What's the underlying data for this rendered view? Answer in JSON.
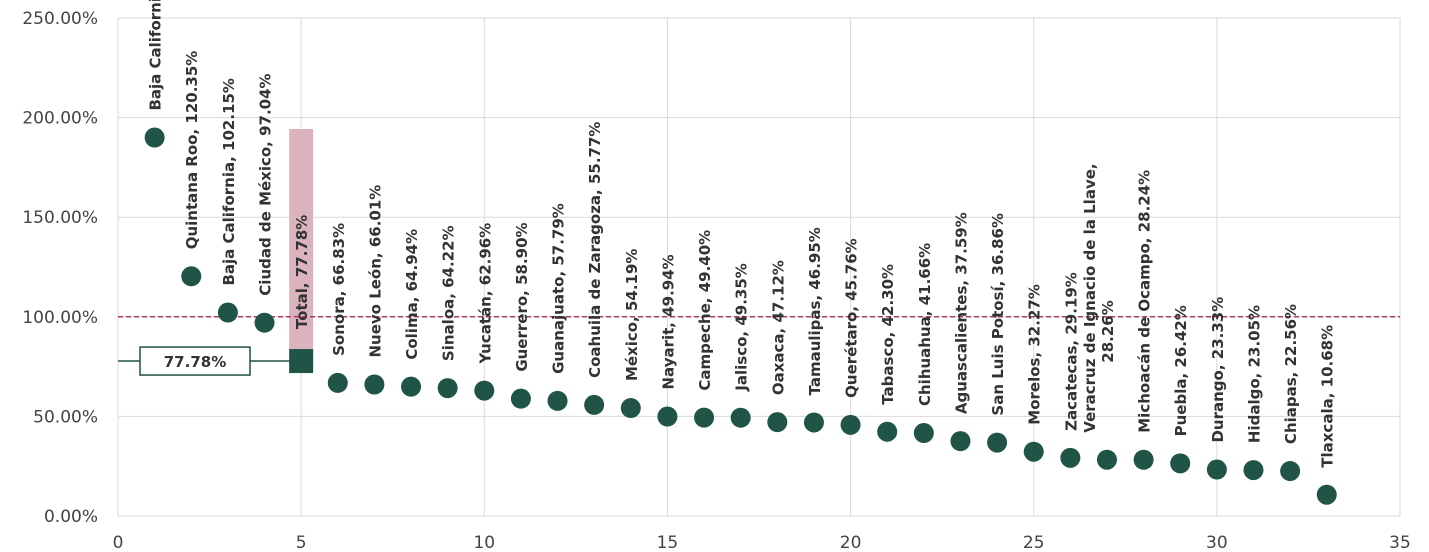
{
  "chart_data": {
    "type": "scatter",
    "xlim": [
      0,
      35
    ],
    "ylim": [
      0,
      250
    ],
    "x_ticks": [
      0,
      5,
      10,
      15,
      20,
      25,
      30,
      35
    ],
    "x_tick_labels": [
      "0",
      "5",
      "10",
      "15",
      "20",
      "25",
      "30",
      "35"
    ],
    "y_ticks": [
      0,
      50,
      100,
      150,
      200,
      250
    ],
    "y_tick_labels": [
      "0.00%",
      "50.00%",
      "100.00%",
      "150.00%",
      "200.00%",
      "250.00%"
    ],
    "grid": true,
    "reference_line": {
      "y": 100,
      "style": "dashed"
    },
    "highlight": {
      "x": 5,
      "y": 77.78,
      "label": "Total, 77.78%",
      "callout": "77.78%"
    },
    "points": [
      {
        "x": 1,
        "y": 190,
        "label": "Baja California Sur"
      },
      {
        "x": 2,
        "y": 120.35,
        "label": "Quintana Roo, 120.35%"
      },
      {
        "x": 3,
        "y": 102.15,
        "label": "Baja California, 102.15%"
      },
      {
        "x": 4,
        "y": 97.04,
        "label": "Ciudad de México, 97.04%"
      },
      {
        "x": 6,
        "y": 66.83,
        "label": "Sonora, 66.83%"
      },
      {
        "x": 7,
        "y": 66.01,
        "label": "Nuevo León, 66.01%"
      },
      {
        "x": 8,
        "y": 64.94,
        "label": "Colima, 64.94%"
      },
      {
        "x": 9,
        "y": 64.22,
        "label": "Sinaloa, 64.22%"
      },
      {
        "x": 10,
        "y": 62.96,
        "label": "Yucatán, 62.96%"
      },
      {
        "x": 11,
        "y": 58.9,
        "label": "Guerrero, 58.90%"
      },
      {
        "x": 12,
        "y": 57.79,
        "label": "Guanajuato, 57.79%"
      },
      {
        "x": 13,
        "y": 55.77,
        "label": "Coahuila de Zaragoza, 55.77%"
      },
      {
        "x": 14,
        "y": 54.19,
        "label": "México, 54.19%"
      },
      {
        "x": 15,
        "y": 49.94,
        "label": "Nayarit, 49.94%"
      },
      {
        "x": 16,
        "y": 49.4,
        "label": "Campeche, 49.40%"
      },
      {
        "x": 17,
        "y": 49.35,
        "label": "Jalisco, 49.35%"
      },
      {
        "x": 18,
        "y": 47.12,
        "label": "Oaxaca, 47.12%"
      },
      {
        "x": 19,
        "y": 46.95,
        "label": "Tamaulipas, 46.95%"
      },
      {
        "x": 20,
        "y": 45.76,
        "label": "Querétaro, 45.76%"
      },
      {
        "x": 21,
        "y": 42.3,
        "label": "Tabasco, 42.30%"
      },
      {
        "x": 22,
        "y": 41.66,
        "label": "Chihuahua, 41.66%"
      },
      {
        "x": 23,
        "y": 37.59,
        "label": "Aguascalientes, 37.59%"
      },
      {
        "x": 24,
        "y": 36.86,
        "label": "San Luis Potosí, 36.86%"
      },
      {
        "x": 25,
        "y": 32.27,
        "label": "Morelos, 32.27%"
      },
      {
        "x": 26,
        "y": 29.19,
        "label": "Zacatecas, 29.19%"
      },
      {
        "x": 27,
        "y": 28.26,
        "label": [
          "Veracruz de Ignacio de la Llave,",
          "28.26%"
        ]
      },
      {
        "x": 28,
        "y": 28.24,
        "label": "Michoacán de Ocampo, 28.24%"
      },
      {
        "x": 29,
        "y": 26.42,
        "label": "Puebla, 26.42%"
      },
      {
        "x": 30,
        "y": 23.33,
        "label": "Durango, 23.33%"
      },
      {
        "x": 31,
        "y": 23.05,
        "label": "Hidalgo, 23.05%"
      },
      {
        "x": 32,
        "y": 22.56,
        "label": "Chiapas, 22.56%"
      },
      {
        "x": 33,
        "y": 10.68,
        "label": "Tlaxcala, 10.68%"
      }
    ],
    "colors": {
      "point": "#1f5446",
      "highlight_bar": "#dbb3bd",
      "reference_line": "#a0425e",
      "grid": "#d9d9d9"
    }
  }
}
